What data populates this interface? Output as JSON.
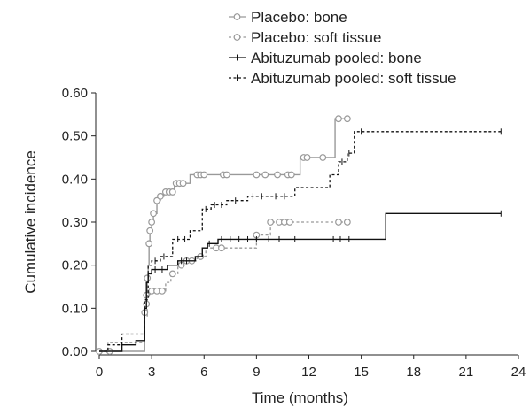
{
  "chart_data": {
    "type": "line",
    "title": "",
    "xlabel": "Time (months)",
    "ylabel": "Cumulative incidence",
    "xlim": [
      0,
      24
    ],
    "ylim": [
      0,
      0.6
    ],
    "xticks": [
      0,
      3,
      6,
      9,
      12,
      15,
      18,
      21,
      24
    ],
    "xtick_labels": [
      "0",
      "3",
      "6",
      "9",
      "12",
      "15",
      "18",
      "21",
      "24"
    ],
    "yticks": [
      0,
      0.1,
      0.2,
      0.3,
      0.4,
      0.5,
      0.6
    ],
    "ytick_labels": [
      "0.00",
      "0.10",
      "0.20",
      "0.30",
      "0.40",
      "0.50",
      "0.60"
    ],
    "legend_position": "top-right",
    "grid": false,
    "series": [
      {
        "name": "Placebo: bone",
        "color": "#999999",
        "line": "solid",
        "marker": "circle",
        "step_points": [
          [
            0,
            0
          ],
          [
            2.6,
            0
          ],
          [
            2.6,
            0.09
          ],
          [
            2.7,
            0.13
          ],
          [
            2.75,
            0.17
          ],
          [
            2.8,
            0.2
          ],
          [
            2.85,
            0.25
          ],
          [
            2.9,
            0.28
          ],
          [
            3.0,
            0.3
          ],
          [
            3.1,
            0.32
          ],
          [
            3.3,
            0.35
          ],
          [
            3.5,
            0.36
          ],
          [
            3.7,
            0.37
          ],
          [
            4.3,
            0.39
          ],
          [
            5.2,
            0.41
          ],
          [
            11.5,
            0.41
          ],
          [
            11.5,
            0.45
          ],
          [
            13.5,
            0.45
          ],
          [
            13.5,
            0.54
          ],
          [
            14.2,
            0.54
          ]
        ],
        "censor_points": [
          [
            0,
            0
          ],
          [
            0.6,
            0
          ],
          [
            2.6,
            0.09
          ],
          [
            2.7,
            0.13
          ],
          [
            2.75,
            0.17
          ],
          [
            2.85,
            0.25
          ],
          [
            2.9,
            0.28
          ],
          [
            3.0,
            0.3
          ],
          [
            3.1,
            0.32
          ],
          [
            3.3,
            0.35
          ],
          [
            3.5,
            0.36
          ],
          [
            3.8,
            0.37
          ],
          [
            4.0,
            0.37
          ],
          [
            4.2,
            0.37
          ],
          [
            4.4,
            0.39
          ],
          [
            4.6,
            0.39
          ],
          [
            4.8,
            0.39
          ],
          [
            5.6,
            0.41
          ],
          [
            5.8,
            0.41
          ],
          [
            6.0,
            0.41
          ],
          [
            7.1,
            0.41
          ],
          [
            7.3,
            0.41
          ],
          [
            9.0,
            0.41
          ],
          [
            9.5,
            0.41
          ],
          [
            10.2,
            0.41
          ],
          [
            10.8,
            0.41
          ],
          [
            11.0,
            0.41
          ],
          [
            11.7,
            0.45
          ],
          [
            11.9,
            0.45
          ],
          [
            12.8,
            0.45
          ],
          [
            13.7,
            0.54
          ],
          [
            14.2,
            0.54
          ]
        ]
      },
      {
        "name": "Placebo: soft tissue",
        "color": "#999999",
        "line": "dashed",
        "marker": "circle",
        "step_points": [
          [
            0,
            0
          ],
          [
            0.5,
            0.02
          ],
          [
            2.6,
            0.02
          ],
          [
            2.6,
            0.08
          ],
          [
            2.75,
            0.13
          ],
          [
            2.9,
            0.14
          ],
          [
            3.8,
            0.14
          ],
          [
            3.8,
            0.16
          ],
          [
            4.1,
            0.18
          ],
          [
            4.5,
            0.2
          ],
          [
            4.8,
            0.21
          ],
          [
            5.6,
            0.22
          ],
          [
            6.1,
            0.24
          ],
          [
            9.0,
            0.24
          ],
          [
            9.0,
            0.27
          ],
          [
            9.8,
            0.3
          ],
          [
            14.2,
            0.3
          ]
        ],
        "censor_points": [
          [
            2.7,
            0.11
          ],
          [
            3.0,
            0.14
          ],
          [
            3.3,
            0.14
          ],
          [
            3.6,
            0.14
          ],
          [
            4.2,
            0.18
          ],
          [
            4.7,
            0.2
          ],
          [
            5.0,
            0.21
          ],
          [
            5.3,
            0.21
          ],
          [
            5.8,
            0.22
          ],
          [
            6.7,
            0.24
          ],
          [
            7.0,
            0.24
          ],
          [
            9.0,
            0.27
          ],
          [
            9.8,
            0.3
          ],
          [
            10.3,
            0.3
          ],
          [
            10.6,
            0.3
          ],
          [
            10.9,
            0.3
          ],
          [
            13.7,
            0.3
          ],
          [
            14.2,
            0.3
          ]
        ]
      },
      {
        "name": "Abituzumab pooled: bone",
        "color": "#111111",
        "line": "solid",
        "marker": "tick",
        "step_points": [
          [
            0,
            0
          ],
          [
            1.3,
            0
          ],
          [
            1.3,
            0.015
          ],
          [
            2.1,
            0.015
          ],
          [
            2.1,
            0.025
          ],
          [
            2.6,
            0.025
          ],
          [
            2.6,
            0.1
          ],
          [
            2.7,
            0.16
          ],
          [
            2.8,
            0.18
          ],
          [
            3.0,
            0.19
          ],
          [
            3.9,
            0.19
          ],
          [
            3.9,
            0.2
          ],
          [
            4.5,
            0.2
          ],
          [
            4.5,
            0.21
          ],
          [
            5.5,
            0.22
          ],
          [
            5.9,
            0.24
          ],
          [
            6.2,
            0.25
          ],
          [
            6.8,
            0.26
          ],
          [
            16.4,
            0.26
          ],
          [
            16.4,
            0.32
          ],
          [
            23,
            0.32
          ]
        ],
        "censor_points": [
          [
            3.2,
            0.19
          ],
          [
            3.6,
            0.19
          ],
          [
            4.7,
            0.21
          ],
          [
            5.0,
            0.21
          ],
          [
            6.3,
            0.25
          ],
          [
            7.0,
            0.26
          ],
          [
            7.5,
            0.26
          ],
          [
            8.0,
            0.26
          ],
          [
            8.5,
            0.26
          ],
          [
            9.0,
            0.26
          ],
          [
            9.7,
            0.26
          ],
          [
            10.3,
            0.26
          ],
          [
            11.2,
            0.26
          ],
          [
            13.4,
            0.26
          ],
          [
            13.8,
            0.26
          ],
          [
            14.3,
            0.26
          ],
          [
            23,
            0.32
          ]
        ]
      },
      {
        "name": "Abituzumab pooled: soft tissue",
        "color": "#111111",
        "line": "dashed",
        "marker": "tick",
        "step_points": [
          [
            0,
            0
          ],
          [
            0.5,
            0.015
          ],
          [
            1.3,
            0.015
          ],
          [
            1.3,
            0.04
          ],
          [
            2.6,
            0.04
          ],
          [
            2.6,
            0.12
          ],
          [
            2.8,
            0.2
          ],
          [
            3.0,
            0.21
          ],
          [
            3.5,
            0.22
          ],
          [
            4.2,
            0.26
          ],
          [
            5.2,
            0.26
          ],
          [
            5.2,
            0.28
          ],
          [
            5.9,
            0.33
          ],
          [
            6.4,
            0.34
          ],
          [
            7.3,
            0.35
          ],
          [
            8.5,
            0.36
          ],
          [
            11.2,
            0.36
          ],
          [
            11.2,
            0.38
          ],
          [
            13.2,
            0.38
          ],
          [
            13.2,
            0.41
          ],
          [
            13.7,
            0.44
          ],
          [
            14.2,
            0.46
          ],
          [
            14.6,
            0.51
          ],
          [
            23,
            0.51
          ]
        ],
        "censor_points": [
          [
            3.2,
            0.21
          ],
          [
            3.7,
            0.22
          ],
          [
            4.5,
            0.26
          ],
          [
            4.9,
            0.26
          ],
          [
            6.1,
            0.33
          ],
          [
            6.6,
            0.34
          ],
          [
            7.0,
            0.34
          ],
          [
            7.8,
            0.35
          ],
          [
            8.8,
            0.36
          ],
          [
            9.3,
            0.36
          ],
          [
            10.1,
            0.36
          ],
          [
            10.6,
            0.36
          ],
          [
            13.9,
            0.44
          ],
          [
            14.3,
            0.46
          ],
          [
            15.0,
            0.51
          ],
          [
            23,
            0.51
          ]
        ]
      }
    ]
  }
}
